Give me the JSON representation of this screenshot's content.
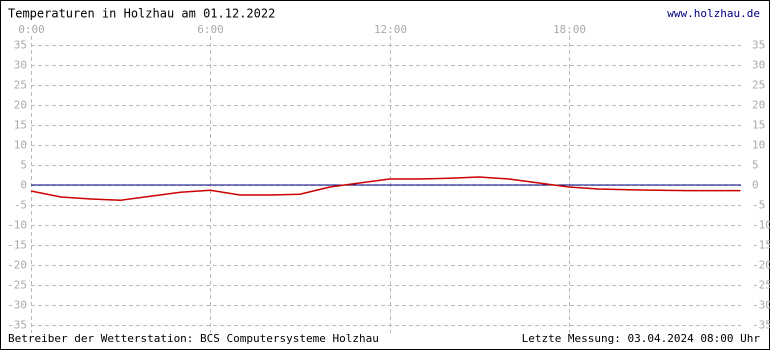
{
  "chart_data": {
    "type": "line",
    "title": "Temperaturen in Holzhau am 01.12.2022",
    "site": "www.holzhau.de",
    "operator": "Betreiber der Wetterstation: BCS Computersysteme Holzhau",
    "last_measurement": "Letzte Messung: 03.04.2024 08:00 Uhr",
    "xlim": [
      0,
      24
    ],
    "xticks": [
      {
        "value": 0,
        "label": "0:00"
      },
      {
        "value": 6,
        "label": "6:00"
      },
      {
        "value": 12,
        "label": "12:00"
      },
      {
        "value": 18,
        "label": "18:00"
      }
    ],
    "ylim": [
      -35,
      35
    ],
    "yticks": [
      -35,
      -30,
      -25,
      -20,
      -15,
      -10,
      -5,
      0,
      5,
      10,
      15,
      20,
      25,
      30,
      35
    ],
    "grid": true,
    "x": [
      0,
      1,
      2,
      3,
      4,
      5,
      6,
      7,
      8,
      9,
      10,
      11,
      12,
      13,
      14,
      15,
      16,
      17,
      18,
      19,
      20,
      21,
      22,
      23,
      23.75
    ],
    "series": [
      {
        "color": "#cc0000",
        "values": [
          -1.5,
          -3,
          -3.5,
          -3.8,
          -2.8,
          -1.8,
          -1.3,
          -2.5,
          -2.5,
          -2.3,
          -0.5,
          0.5,
          1.5,
          1.5,
          1.7,
          2,
          1.5,
          0.5,
          -0.5,
          -1,
          -1.2,
          -1.3,
          -1.4,
          -1.4,
          -1.4
        ]
      }
    ],
    "zero_line_color": "#000080"
  }
}
